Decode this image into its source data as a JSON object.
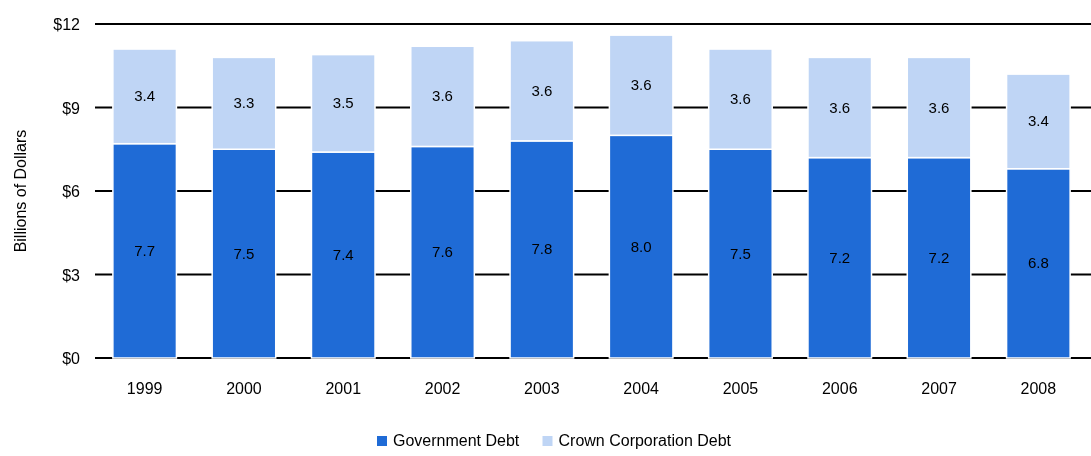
{
  "chart_data": {
    "type": "bar",
    "stacked": true,
    "ylabel": "Billions of Dollars",
    "categories": [
      "1999",
      "2000",
      "2001",
      "2002",
      "2003",
      "2004",
      "2005",
      "2006",
      "2007",
      "2008"
    ],
    "series": [
      {
        "name": "Government Debt",
        "color": "#1f6bd6",
        "values": [
          7.7,
          7.5,
          7.4,
          7.6,
          7.8,
          8.0,
          7.5,
          7.2,
          7.2,
          6.8
        ],
        "value_labels": [
          "7.7",
          "7.5",
          "7.4",
          "7.6",
          "7.8",
          "8.0",
          "7.5",
          "7.2",
          "7.2",
          "6.8"
        ]
      },
      {
        "name": "Crown Corporation Debt",
        "color": "#bfd5f5",
        "values": [
          3.4,
          3.3,
          3.5,
          3.6,
          3.6,
          3.6,
          3.6,
          3.6,
          3.6,
          3.4
        ],
        "value_labels": [
          "3.4",
          "3.3",
          "3.5",
          "3.6",
          "3.6",
          "3.6",
          "3.6",
          "3.6",
          "3.6",
          "3.4"
        ]
      }
    ],
    "ylim": [
      0,
      12
    ],
    "yticks": [
      {
        "value": 0,
        "label": "$0"
      },
      {
        "value": 3,
        "label": "$3"
      },
      {
        "value": 6,
        "label": "$6"
      },
      {
        "value": 9,
        "label": "$9"
      },
      {
        "value": 12,
        "label": "$12"
      }
    ],
    "grid": "y",
    "legend": "bottom"
  }
}
